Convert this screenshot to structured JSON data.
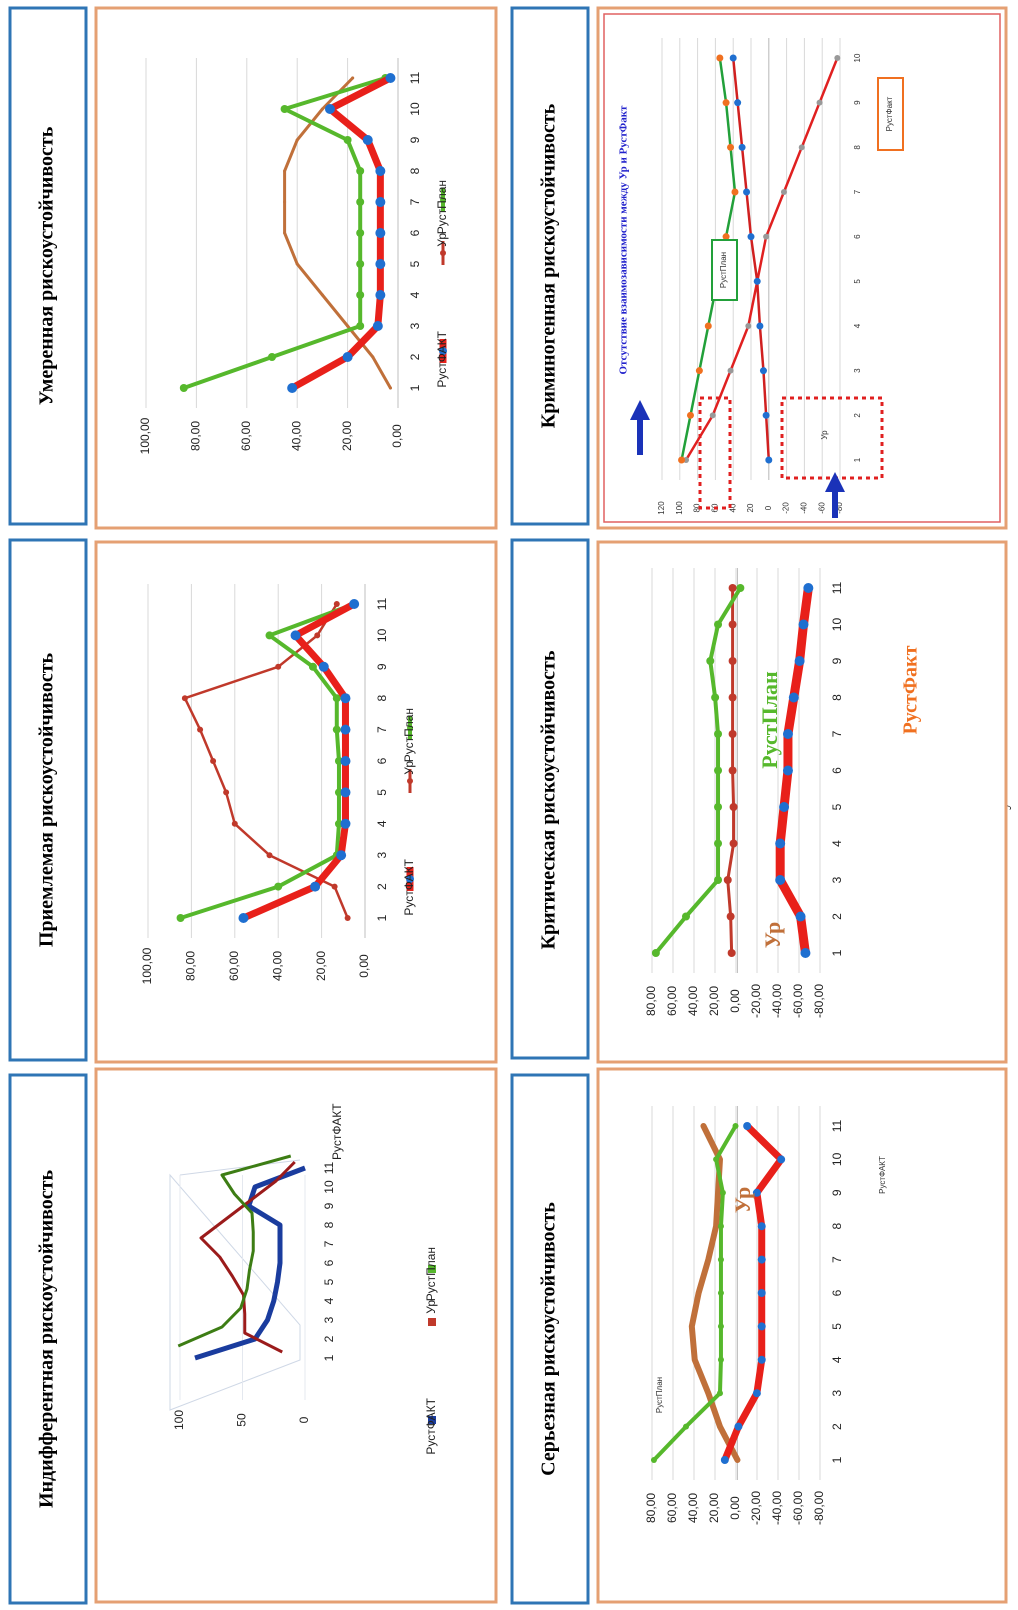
{
  "colors": {
    "panel_border": "#e5a073",
    "title_border": "#2f75b5",
    "fact": "#1f6fd0",
    "fact_line": "#e8201a",
    "ur": "#c0392b",
    "ur_brown": "#c0703a",
    "plan": "#56b82c",
    "plan_dark": "#2e7d14",
    "plan_orange": "#f07020"
  },
  "headline_fragment": "у",
  "panels": [
    {
      "title": "Индифферентная рискоустойчивость",
      "chart_data": {
        "type": "line",
        "style": "3d",
        "x": [
          1,
          2,
          3,
          4,
          5,
          6,
          7,
          8,
          9,
          10,
          11
        ],
        "ylim": [
          0,
          100
        ],
        "yticks": [
          "0",
          "50",
          "100"
        ],
        "series": [
          {
            "name": "РустФАКТ",
            "values": [
              88,
              40,
              30,
              25,
              22,
              20,
              20,
              20,
              45,
              40,
              0
            ]
          },
          {
            "name": "Ур",
            "values": [
              15,
              45,
              45,
              46,
              55,
              65,
              80,
              60,
              40,
              20,
              5
            ]
          },
          {
            "name": "РустПлан",
            "values": [
              95,
              60,
              45,
              40,
              38,
              35,
              35,
              36,
              50,
              60,
              5
            ]
          }
        ],
        "series_label": "РустФАКТ",
        "legend": [
          "РустФАКТ",
          "Ур",
          "РустПлан"
        ],
        "legend_position": "bottom"
      }
    },
    {
      "title": "Приемлемая рискоустойчивость",
      "chart_data": {
        "type": "line",
        "x": [
          1,
          2,
          3,
          4,
          5,
          6,
          7,
          8,
          9,
          10,
          11
        ],
        "ylim": [
          0,
          100
        ],
        "yticks": [
          "0,00",
          "20,00",
          "40,00",
          "60,00",
          "80,00",
          "100,00"
        ],
        "series": [
          {
            "name": "РустФАКТ",
            "values": [
              56,
              23,
              11,
              9,
              9,
              9,
              9,
              9,
              19,
              32,
              5
            ]
          },
          {
            "name": "Ур",
            "values": [
              8,
              14,
              44,
              60,
              64,
              70,
              76,
              83,
              40,
              22,
              13
            ]
          },
          {
            "name": "РустПлан",
            "values": [
              85,
              40,
              13,
              12,
              12,
              12,
              13,
              13,
              24,
              44,
              5
            ]
          }
        ],
        "legend": [
          "РустФАКТ",
          "Ур",
          "РустПлан"
        ],
        "legend_position": "bottom"
      }
    },
    {
      "title": "Умеренная рискоустойчивость",
      "chart_data": {
        "type": "line",
        "x": [
          1,
          2,
          3,
          4,
          5,
          6,
          7,
          8,
          9,
          10,
          11
        ],
        "ylim": [
          0,
          100
        ],
        "yticks": [
          "0,00",
          "20,00",
          "40,00",
          "60,00",
          "80,00",
          "100,00"
        ],
        "series": [
          {
            "name": "РустФАКТ",
            "values": [
              42,
              20,
              8,
              7,
              7,
              7,
              7,
              7,
              12,
              27,
              3
            ]
          },
          {
            "name": "Ур",
            "values": [
              3,
              10,
              20,
              30,
              40,
              45,
              45,
              45,
              40,
              30,
              18
            ]
          },
          {
            "name": "РустПлан",
            "values": [
              85,
              50,
              15,
              15,
              15,
              15,
              15,
              15,
              20,
              45,
              5
            ]
          }
        ],
        "legend": [
          "РустФАКТ",
          "Ур",
          "РустПлан"
        ],
        "legend_position": "bottom"
      }
    },
    {
      "title": "Серьезная рискоустойчивость",
      "chart_data": {
        "type": "line",
        "x": [
          1,
          2,
          3,
          4,
          5,
          6,
          7,
          8,
          9,
          10,
          11
        ],
        "ylim": [
          -85,
          88
        ],
        "yticks": [
          "-80,00",
          "-60,00",
          "-40,00",
          "-20,00",
          "0,00",
          "20,00",
          "40,00",
          "60,00",
          "80,00"
        ],
        "series": [
          {
            "name": "РустПлан",
            "values": [
              86,
              53,
              18,
              17,
              17,
              17,
              17,
              17,
              15,
              22,
              2
            ]
          },
          {
            "name": "Ур",
            "values": [
              0,
              18,
              30,
              44,
              47,
              40,
              30,
              22,
              20,
              18,
              35
            ]
          },
          {
            "name": "РустФАКТ",
            "values": [
              13,
              -1,
              -20,
              -25,
              -25,
              -25,
              -25,
              -25,
              -20,
              -45,
              -10
            ]
          }
        ],
        "annotations": [
          "РустПлан",
          "Ур",
          "РустФАКТ"
        ]
      }
    },
    {
      "title": "Критическая рискоустойчивость",
      "chart_data": {
        "type": "line",
        "x": [
          1,
          2,
          3,
          4,
          5,
          6,
          7,
          8,
          9,
          10,
          11
        ],
        "ylim": [
          -85,
          88
        ],
        "yticks": [
          "-80,00",
          "-60,00",
          "-40,00",
          "-20,00",
          "0,00",
          "20,00",
          "40,00",
          "60,00",
          "80,00"
        ],
        "series": [
          {
            "name": "РустПлан",
            "values": [
              84,
              53,
              20,
              20,
              20,
              20,
              20,
              23,
              28,
              20,
              -3
            ]
          },
          {
            "name": "Ур",
            "values": [
              6,
              7,
              10,
              4,
              4,
              5,
              5,
              5,
              5,
              5,
              5
            ]
          },
          {
            "name": "РустФакт",
            "values": [
              -70,
              -65,
              -44,
              -44,
              -48,
              -52,
              -52,
              -58,
              -64,
              -68,
              -73
            ]
          }
        ],
        "annotations": [
          "РустПлан",
          "Ур",
          "РустФакт"
        ]
      }
    },
    {
      "title": "Криминогенная рискоустойчивость",
      "chart_data": {
        "type": "line",
        "x": [
          1,
          2,
          3,
          4,
          5,
          6,
          7,
          8,
          9,
          10
        ],
        "ylim": [
          -80,
          120
        ],
        "yticks": [
          "-80",
          "-60",
          "-40",
          "-20",
          "0",
          "20",
          "40",
          "60",
          "80",
          "100",
          "120"
        ],
        "series": [
          {
            "name": "РустПлан",
            "values": [
              98,
              88,
              78,
              68,
              58,
              48,
              38,
              43,
              48,
              55
            ]
          },
          {
            "name": "Ур",
            "values": [
              93,
              63,
              43,
              23,
              13,
              3,
              -17,
              -37,
              -57,
              -77
            ]
          },
          {
            "name": "РустФакт",
            "values": [
              0,
              3,
              6,
              10,
              13,
              20,
              25,
              30,
              35,
              40
            ]
          }
        ],
        "heading": "Отсутствие взаимозависимости между Ур и РустФакт",
        "annotations": [
          "РустПлан",
          "Ур",
          "РустФакт"
        ]
      }
    }
  ]
}
